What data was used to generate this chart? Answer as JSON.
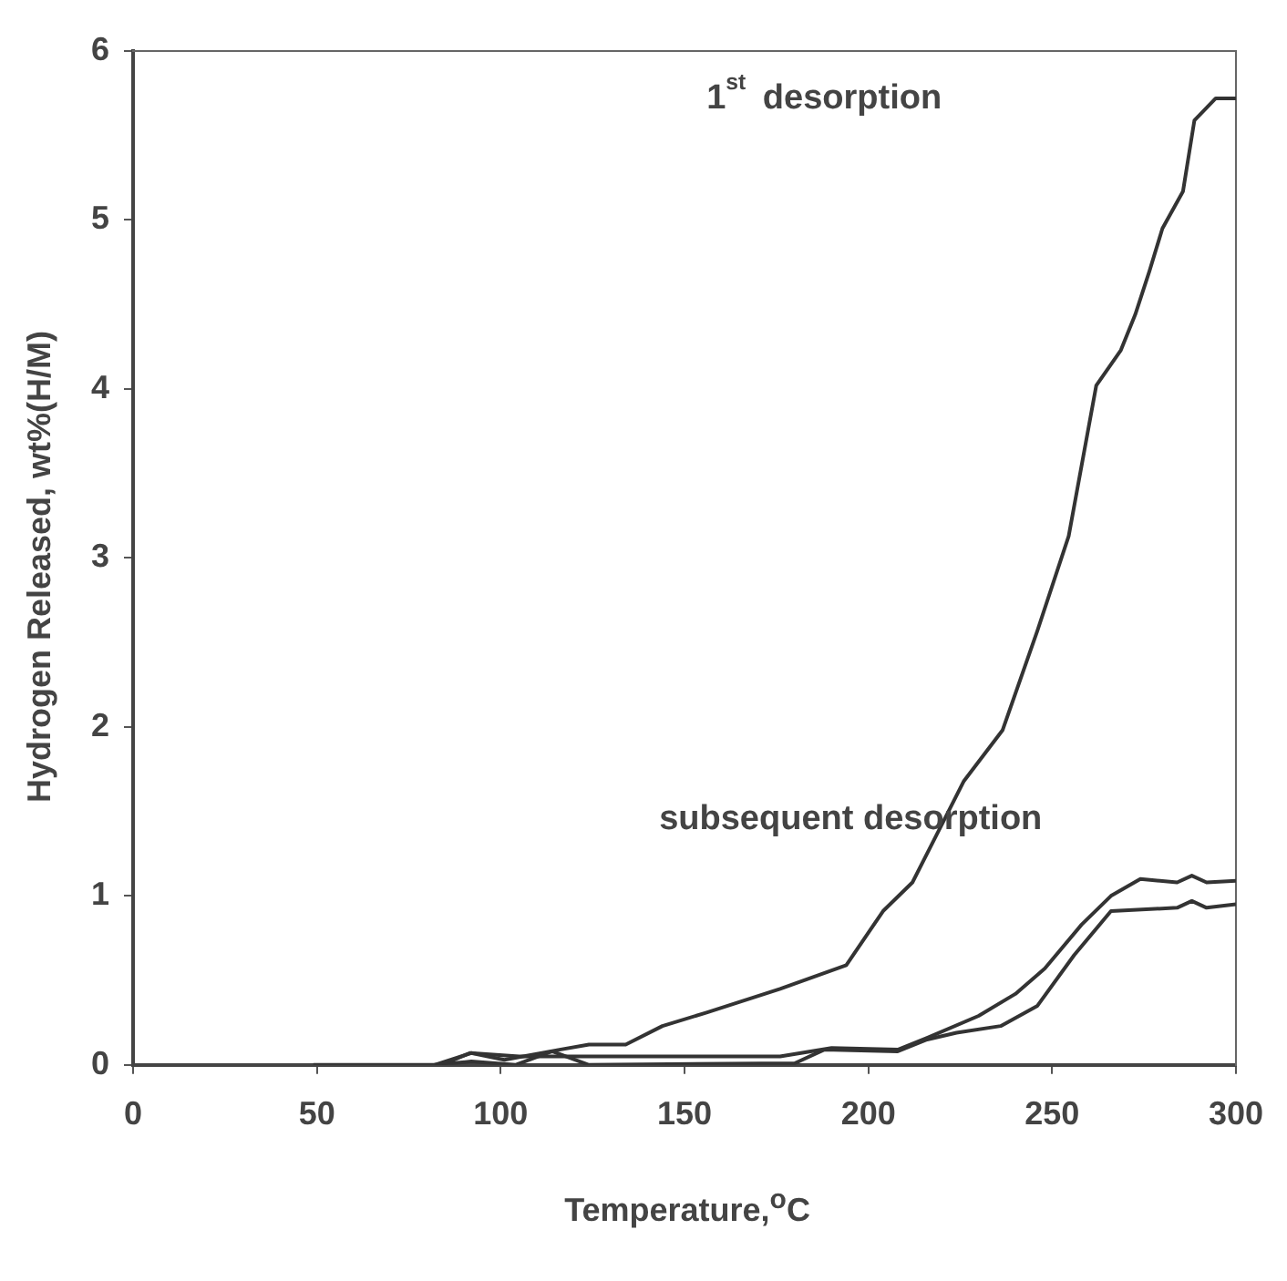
{
  "chart_data": {
    "type": "line",
    "xlabel": "Temperature,$^{o}$C",
    "ylabel": "Hydrogen Released, wt%(H/M)",
    "xlim": [
      0,
      300
    ],
    "xticks": [
      0,
      50,
      100,
      150,
      200,
      250,
      300
    ],
    "ylim": [
      0,
      6
    ],
    "yticks": [
      0,
      1,
      2,
      3,
      4,
      5,
      6
    ],
    "grid": false,
    "legend": false,
    "marker": "none",
    "line_style": "solid",
    "series": [
      {
        "color": "#333333",
        "x": [
          49,
          82,
          92,
          101,
          116,
          124,
          134,
          144,
          156,
          176,
          194,
          204,
          212,
          226,
          236.5,
          246,
          254.5,
          262,
          268.7,
          272.6,
          276.5,
          280,
          285.6,
          288.7,
          294.5,
          300
        ],
        "values": [
          0,
          0,
          0.07,
          0.03,
          0.09,
          0.12,
          0.12,
          0.23,
          0.31,
          0.45,
          0.59,
          0.91,
          1.08,
          1.68,
          1.98,
          2.57,
          3.13,
          4.02,
          4.23,
          4.44,
          4.7,
          4.95,
          5.17,
          5.59,
          5.72,
          5.72
        ]
      },
      {
        "color": "#333333",
        "x": [
          84,
          91.6,
          105,
          176,
          190,
          208,
          216,
          230,
          240,
          248,
          258,
          266,
          274,
          284,
          288,
          292,
          300
        ],
        "values": [
          0,
          0.07,
          0.05,
          0.05,
          0.1,
          0.09,
          0.16,
          0.29,
          0.42,
          0.57,
          0.83,
          1.0,
          1.1,
          1.08,
          1.12,
          1.08,
          1.09
        ]
      },
      {
        "color": "#333333",
        "x": [
          82,
          92,
          104,
          114,
          124,
          180,
          188,
          208,
          216,
          224,
          236,
          246,
          256,
          266,
          284,
          288,
          292,
          300
        ],
        "values": [
          0,
          0.02,
          0,
          0.08,
          0,
          0.01,
          0.09,
          0.08,
          0.15,
          0.19,
          0.23,
          0.35,
          0.65,
          0.91,
          0.93,
          0.97,
          0.93,
          0.95
        ]
      }
    ],
    "annotations": [
      "1$^{st}$ desorption",
      "subsequent desorption"
    ]
  }
}
